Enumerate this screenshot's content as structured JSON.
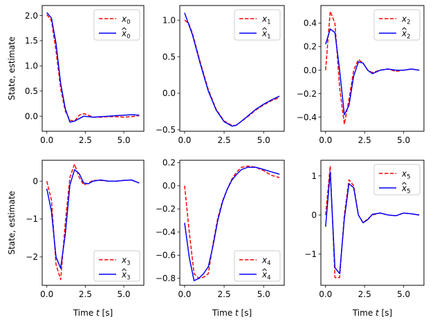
{
  "chart_data": [
    {
      "type": "line",
      "ylabel": "State, estimate",
      "xlabel": "",
      "xlim": [
        -0.3,
        6.3
      ],
      "ylim": [
        -0.3,
        2.2
      ],
      "xticks": [
        0.0,
        2.5,
        5.0
      ],
      "yticks": [
        0.0,
        0.5,
        1.0,
        1.5,
        2.0
      ],
      "legend": "top-right",
      "series": [
        {
          "name": "x_0",
          "label_main": "x",
          "label_sub": "0",
          "hat": false,
          "color": "#ff0000",
          "style": "dashed",
          "x": [
            0,
            0.3,
            0.6,
            0.9,
            1.2,
            1.5,
            1.8,
            2.1,
            2.4,
            2.7,
            3.0,
            3.5,
            4.0,
            4.5,
            5.0,
            5.5,
            6.0
          ],
          "y": [
            2.02,
            1.9,
            1.3,
            0.55,
            0.1,
            -0.08,
            -0.1,
            0.02,
            0.05,
            0.02,
            -0.02,
            -0.02,
            -0.01,
            -0.01,
            -0.02,
            -0.01,
            0.01
          ]
        },
        {
          "name": "x̂_0",
          "label_main": "x",
          "label_sub": "0",
          "hat": true,
          "color": "#0000ff",
          "style": "solid",
          "x": [
            0,
            0.3,
            0.6,
            0.9,
            1.2,
            1.5,
            1.8,
            2.1,
            2.4,
            2.7,
            3.0,
            3.5,
            4.0,
            4.5,
            5.0,
            5.5,
            6.0
          ],
          "y": [
            2.06,
            1.95,
            1.45,
            0.65,
            0.15,
            -0.12,
            -0.1,
            -0.05,
            0.0,
            -0.01,
            -0.02,
            -0.01,
            0.0,
            0.01,
            0.02,
            0.03,
            0.02
          ]
        }
      ]
    },
    {
      "type": "line",
      "ylabel": "",
      "xlabel": "",
      "xlim": [
        -0.3,
        6.3
      ],
      "ylim": [
        -0.52,
        1.2
      ],
      "xticks": [
        0.0,
        2.5,
        5.0
      ],
      "yticks": [
        -0.5,
        0.0,
        0.5,
        1.0
      ],
      "legend": "top-right",
      "series": [
        {
          "name": "x_1",
          "label_main": "x",
          "label_sub": "1",
          "hat": false,
          "color": "#ff0000",
          "style": "dashed",
          "x": [
            0,
            0.25,
            0.5,
            0.75,
            1.0,
            1.5,
            2.0,
            2.5,
            3.0,
            3.25,
            3.5,
            4.0,
            4.5,
            5.0,
            5.5,
            6.0
          ],
          "y": [
            1.0,
            0.96,
            0.82,
            0.62,
            0.42,
            0.05,
            -0.22,
            -0.38,
            -0.44,
            -0.44,
            -0.4,
            -0.32,
            -0.23,
            -0.16,
            -0.1,
            -0.06
          ]
        },
        {
          "name": "x̂_1",
          "label_main": "x",
          "label_sub": "1",
          "hat": true,
          "color": "#0000ff",
          "style": "solid",
          "x": [
            0,
            0.25,
            0.5,
            0.75,
            1.0,
            1.5,
            2.0,
            2.5,
            3.0,
            3.25,
            3.5,
            4.0,
            4.5,
            5.0,
            5.5,
            6.0
          ],
          "y": [
            1.1,
            0.95,
            0.8,
            0.6,
            0.4,
            0.03,
            -0.23,
            -0.39,
            -0.45,
            -0.44,
            -0.4,
            -0.31,
            -0.22,
            -0.15,
            -0.09,
            -0.04
          ]
        }
      ]
    },
    {
      "type": "line",
      "ylabel": "",
      "xlabel": "",
      "xlim": [
        -0.3,
        6.3
      ],
      "ylim": [
        -0.52,
        0.55
      ],
      "xticks": [
        0.0,
        2.5,
        5.0
      ],
      "yticks": [
        -0.4,
        -0.2,
        0.0,
        0.2,
        0.4
      ],
      "legend": "top-right",
      "series": [
        {
          "name": "x_2",
          "label_main": "x",
          "label_sub": "2",
          "hat": false,
          "color": "#ff0000",
          "style": "dashed",
          "x": [
            0,
            0.3,
            0.6,
            0.9,
            1.2,
            1.5,
            1.8,
            2.1,
            2.4,
            2.7,
            3.0,
            3.5,
            4.0,
            4.5,
            5.0,
            5.5,
            6.0
          ],
          "y": [
            0.0,
            0.5,
            0.4,
            -0.15,
            -0.46,
            -0.25,
            0.0,
            0.09,
            0.06,
            0.0,
            -0.02,
            0.0,
            0.01,
            -0.01,
            0.0,
            0.01,
            0.0
          ]
        },
        {
          "name": "x̂_2",
          "label_main": "x",
          "label_sub": "2",
          "hat": true,
          "color": "#0000ff",
          "style": "solid",
          "x": [
            0,
            0.3,
            0.6,
            0.9,
            1.2,
            1.5,
            1.8,
            2.1,
            2.4,
            2.7,
            3.0,
            3.5,
            4.0,
            4.5,
            5.0,
            5.5,
            6.0
          ],
          "y": [
            0.22,
            0.35,
            0.32,
            0.0,
            -0.38,
            -0.3,
            -0.05,
            0.07,
            0.06,
            0.0,
            -0.03,
            0.0,
            0.01,
            0.0,
            0.0,
            0.01,
            0.0
          ]
        }
      ]
    },
    {
      "type": "line",
      "ylabel": "State, estimate",
      "xlabel": "Time t [s]",
      "xlim": [
        -0.3,
        6.3
      ],
      "ylim": [
        -2.75,
        0.55
      ],
      "xticks": [
        0.0,
        2.5,
        5.0
      ],
      "yticks": [
        -2,
        -1,
        0
      ],
      "legend": "bottom-right",
      "series": [
        {
          "name": "x_3",
          "label_main": "x",
          "label_sub": "3",
          "hat": false,
          "color": "#ff0000",
          "style": "dashed",
          "x": [
            0,
            0.3,
            0.6,
            0.9,
            1.2,
            1.5,
            1.8,
            2.1,
            2.4,
            2.7,
            3.0,
            3.5,
            4.0,
            4.5,
            5.0,
            5.5,
            6.0
          ],
          "y": [
            0.0,
            -0.5,
            -2.2,
            -2.6,
            -1.1,
            0.1,
            0.45,
            0.1,
            -0.1,
            -0.05,
            0.02,
            0.02,
            0.0,
            0.0,
            0.02,
            0.03,
            -0.05
          ]
        },
        {
          "name": "x̂_3",
          "label_main": "x",
          "label_sub": "3",
          "hat": true,
          "color": "#0000ff",
          "style": "solid",
          "x": [
            0,
            0.3,
            0.6,
            0.9,
            1.2,
            1.5,
            1.8,
            2.1,
            2.4,
            2.7,
            3.0,
            3.5,
            4.0,
            4.5,
            5.0,
            5.5,
            6.0
          ],
          "y": [
            -0.2,
            -0.8,
            -2.0,
            -2.3,
            -1.4,
            -0.1,
            0.3,
            0.2,
            -0.05,
            -0.07,
            0.0,
            0.03,
            0.0,
            0.0,
            0.02,
            0.03,
            -0.05
          ]
        }
      ]
    },
    {
      "type": "line",
      "ylabel": "",
      "xlabel": "Time t [s]",
      "xlim": [
        -0.3,
        6.3
      ],
      "ylim": [
        -0.86,
        0.22
      ],
      "xticks": [
        0.0,
        2.5,
        5.0
      ],
      "yticks": [
        -0.8,
        -0.6,
        -0.4,
        -0.2,
        0.0,
        0.2
      ],
      "legend": "bottom-right",
      "series": [
        {
          "name": "x_4",
          "label_main": "x",
          "label_sub": "4",
          "hat": false,
          "color": "#ff0000",
          "style": "dashed",
          "x": [
            0,
            0.3,
            0.6,
            0.9,
            1.2,
            1.5,
            1.8,
            2.1,
            2.4,
            2.7,
            3.0,
            3.3,
            3.6,
            4.0,
            4.5,
            5.0,
            5.5,
            6.0
          ],
          "y": [
            0.0,
            -0.4,
            -0.76,
            -0.8,
            -0.79,
            -0.76,
            -0.5,
            -0.28,
            -0.13,
            -0.03,
            0.06,
            0.12,
            0.16,
            0.17,
            0.16,
            0.13,
            0.09,
            0.07
          ]
        },
        {
          "name": "x̂_4",
          "label_main": "x",
          "label_sub": "4",
          "hat": true,
          "color": "#0000ff",
          "style": "solid",
          "x": [
            0,
            0.3,
            0.6,
            0.9,
            1.2,
            1.5,
            1.8,
            2.1,
            2.4,
            2.7,
            3.0,
            3.3,
            3.6,
            4.0,
            4.5,
            5.0,
            5.5,
            6.0
          ],
          "y": [
            -0.32,
            -0.62,
            -0.82,
            -0.8,
            -0.76,
            -0.7,
            -0.52,
            -0.3,
            -0.14,
            -0.03,
            0.05,
            0.1,
            0.14,
            0.16,
            0.16,
            0.14,
            0.12,
            0.1
          ]
        }
      ]
    },
    {
      "type": "line",
      "ylabel": "",
      "xlabel": "Time t [s]",
      "xlim": [
        -0.3,
        6.3
      ],
      "ylim": [
        -1.8,
        1.4
      ],
      "xticks": [
        0.0,
        2.5,
        5.0
      ],
      "yticks": [
        -1,
        0,
        1
      ],
      "legend": "top-right",
      "series": [
        {
          "name": "x_5",
          "label_main": "x",
          "label_sub": "5",
          "hat": false,
          "color": "#ff0000",
          "style": "dashed",
          "x": [
            0,
            0.3,
            0.6,
            0.9,
            1.2,
            1.5,
            1.8,
            2.1,
            2.4,
            2.7,
            3.0,
            3.5,
            4.0,
            4.5,
            5.0,
            5.5,
            6.0
          ],
          "y": [
            0.0,
            1.25,
            -1.6,
            -1.6,
            0.0,
            0.9,
            0.75,
            0.0,
            -0.2,
            -0.1,
            0.0,
            0.05,
            0.0,
            -0.02,
            0.05,
            0.03,
            0.0
          ]
        },
        {
          "name": "x̂_5",
          "label_main": "x",
          "label_sub": "5",
          "hat": true,
          "color": "#0000ff",
          "style": "solid",
          "x": [
            0,
            0.3,
            0.6,
            0.9,
            1.2,
            1.5,
            1.8,
            2.1,
            2.4,
            2.7,
            3.0,
            3.5,
            4.0,
            4.5,
            5.0,
            5.5,
            6.0
          ],
          "y": [
            -0.3,
            1.1,
            -1.35,
            -1.5,
            -0.1,
            0.8,
            0.7,
            0.0,
            -0.2,
            -0.12,
            0.02,
            0.05,
            0.0,
            -0.02,
            0.05,
            0.03,
            0.0
          ]
        }
      ]
    }
  ]
}
